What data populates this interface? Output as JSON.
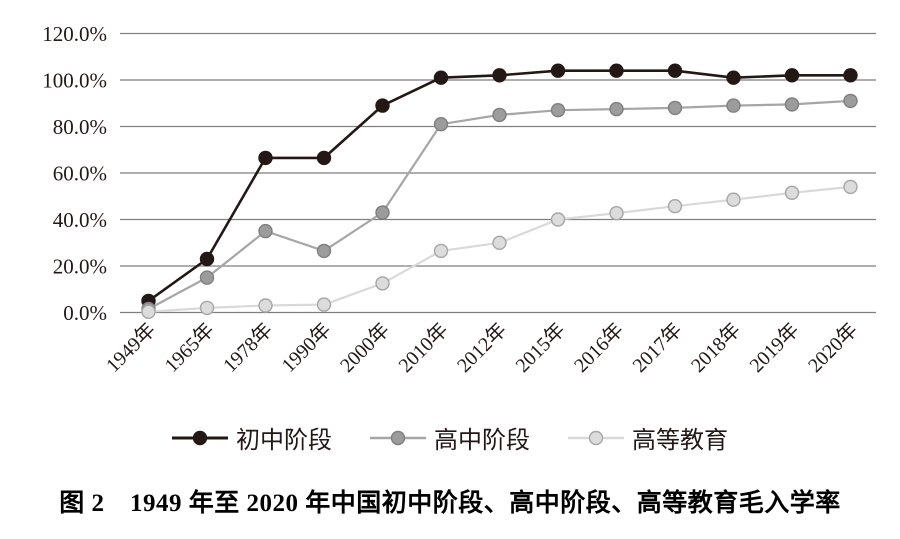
{
  "figure": {
    "caption": "图 2　1949 年至 2020 年中国初中阶段、高中阶段、高等教育毛入学率"
  },
  "chart_data": {
    "type": "line",
    "categories": [
      "1949年",
      "1965年",
      "1978年",
      "1990年",
      "2000年",
      "2010年",
      "2012年",
      "2015年",
      "2016年",
      "2017年",
      "2018年",
      "2019年",
      "2020年"
    ],
    "series": [
      {
        "name": "初中阶段",
        "values": [
          5,
          23,
          66.5,
          66.5,
          89,
          101,
          102,
          104,
          104,
          104,
          101,
          102,
          102
        ],
        "line_color": "#231815",
        "marker_fill": "#231815",
        "marker_stroke": "#231815"
      },
      {
        "name": "高中阶段",
        "values": [
          1.5,
          15,
          35,
          26.5,
          43,
          81,
          85,
          87,
          87.5,
          88,
          89,
          89.5,
          91
        ],
        "line_color": "#a6a6a6",
        "marker_fill": "#9c9c9c",
        "marker_stroke": "#7f7f7f"
      },
      {
        "name": "高等教育",
        "values": [
          0.3,
          2,
          3,
          3.4,
          12.5,
          26.5,
          30,
          40,
          42.7,
          45.7,
          48.5,
          51.5,
          54
        ],
        "line_color": "#d9d9d9",
        "marker_fill": "#dcdcdc",
        "marker_stroke": "#a6a6a6"
      }
    ],
    "ylim": [
      0,
      120
    ],
    "ytick_step": 20,
    "ytick_labels": [
      "0.0%",
      "20.0%",
      "40.0%",
      "60.0%",
      "80.0%",
      "100.0%",
      "120.0%"
    ],
    "grid": true,
    "gridline_color": "#7f7f7f",
    "legend_position": "bottom",
    "xlabel": "",
    "ylabel": ""
  }
}
